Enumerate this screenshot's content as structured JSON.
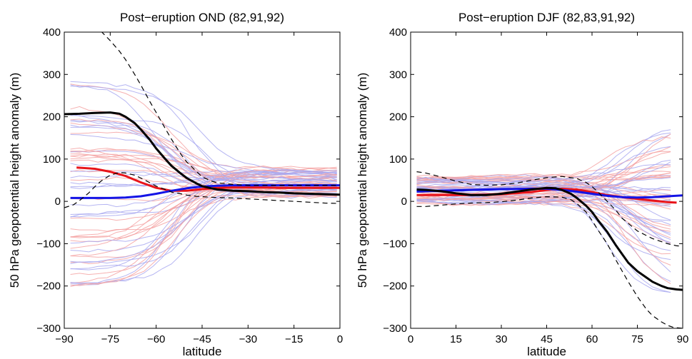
{
  "chart_data": [
    {
      "type": "line",
      "title": "Post−eruption OND (82,91,92)",
      "xlabel": "latitude",
      "ylabel": "50 hPa geopotential height anomaly (m)",
      "xlim": [
        -90,
        0
      ],
      "ylim": [
        -300,
        400
      ],
      "xticks": [
        -90,
        -75,
        -60,
        -45,
        -30,
        -15,
        0
      ],
      "xtick_labels": [
        "−90",
        "−75",
        "−60",
        "−45",
        "−30",
        "−15",
        "0"
      ],
      "yticks": [
        -300,
        -200,
        -100,
        0,
        100,
        200,
        300,
        400
      ],
      "ytick_labels": [
        "−300",
        "−200",
        "−100",
        "0",
        "100",
        "200",
        "300",
        "400"
      ],
      "grid": false,
      "colors": {
        "red_bold": "#e8141a",
        "blue_bold": "#1414e6",
        "black_bold": "#000000",
        "red_thin": "#f5a3a3",
        "blue_thin": "#a8a8f0"
      },
      "series": [
        {
          "role": "ensemble-mean-red",
          "style": "red-bold",
          "x": [
            -86,
            -80,
            -75,
            -70,
            -65,
            -60,
            -55,
            -50,
            -45,
            -40,
            -35,
            -30,
            -25,
            -20,
            -15,
            -10,
            -5,
            0
          ],
          "y": [
            80,
            77,
            70,
            60,
            45,
            32,
            25,
            25,
            29,
            32,
            33,
            33,
            33,
            32,
            32,
            32,
            32,
            32
          ]
        },
        {
          "role": "ensemble-mean-blue",
          "style": "blue-bold",
          "x": [
            -88,
            -80,
            -75,
            -70,
            -65,
            -60,
            -55,
            -50,
            -45,
            -40,
            -35,
            -30,
            -25,
            -20,
            -15,
            -10,
            -5,
            0
          ],
          "y": [
            8,
            8,
            8,
            9,
            12,
            18,
            25,
            31,
            35,
            37,
            38,
            38,
            38,
            38,
            38,
            38,
            38,
            38
          ]
        },
        {
          "role": "observed",
          "style": "black-bold",
          "x": [
            -90,
            -85,
            -80,
            -75,
            -72,
            -70,
            -67,
            -65,
            -62,
            -60,
            -57,
            -55,
            -52,
            -50,
            -47,
            -45,
            -42,
            -40,
            -35,
            -30,
            -25,
            -20,
            -15,
            -10,
            -5,
            0
          ],
          "y": [
            206,
            207,
            209,
            210,
            207,
            200,
            185,
            170,
            145,
            125,
            100,
            84,
            66,
            55,
            43,
            36,
            31,
            28,
            25,
            24,
            22,
            21,
            19,
            18,
            17,
            16
          ]
        },
        {
          "role": "observed-upper-bound",
          "style": "black-dashed",
          "x": [
            -78,
            -75,
            -72,
            -70,
            -67,
            -65,
            -62,
            -60,
            -57,
            -55,
            -52,
            -50,
            -47,
            -45,
            -42,
            -40,
            -35,
            -30,
            -25,
            -20,
            -15,
            -10,
            -5,
            0
          ],
          "y": [
            402,
            380,
            355,
            335,
            300,
            275,
            235,
            210,
            172,
            147,
            112,
            93,
            72,
            58,
            48,
            44,
            40,
            38,
            38,
            38,
            38,
            38,
            38,
            38
          ]
        },
        {
          "role": "observed-lower-bound",
          "style": "black-dashed",
          "x": [
            -90,
            -87,
            -85,
            -82,
            -80,
            -78,
            -75,
            -72,
            -70,
            -67,
            -65,
            -62,
            -60,
            -57,
            -55,
            -52,
            -50,
            -47,
            -45,
            -40,
            -35,
            -30,
            -25,
            -20,
            -15,
            -10,
            -5,
            0
          ],
          "y": [
            -15,
            -8,
            2,
            20,
            35,
            48,
            62,
            68,
            67,
            62,
            55,
            44,
            36,
            28,
            22,
            18,
            15,
            12,
            11,
            9,
            8,
            6,
            4,
            2,
            0,
            -2,
            -4,
            -5
          ]
        }
      ]
    },
    {
      "type": "line",
      "title": "Post−eruption DJF (82,83,91,92)",
      "xlabel": "latitude",
      "ylabel": "50 hPa geopotential height anomaly (m)",
      "xlim": [
        0,
        90
      ],
      "ylim": [
        -300,
        400
      ],
      "xticks": [
        0,
        15,
        30,
        45,
        60,
        75,
        90
      ],
      "xtick_labels": [
        "0",
        "15",
        "30",
        "45",
        "60",
        "75",
        "90"
      ],
      "yticks": [
        -300,
        -200,
        -100,
        0,
        100,
        200,
        300,
        400
      ],
      "ytick_labels": [
        "−300",
        "−200",
        "−100",
        "0",
        "100",
        "200",
        "300",
        "400"
      ],
      "grid": false,
      "colors": {
        "red_bold": "#e8141a",
        "blue_bold": "#1414e6",
        "black_bold": "#000000",
        "red_thin": "#f5a3a3",
        "blue_thin": "#a8a8f0"
      },
      "series": [
        {
          "role": "ensemble-mean-red",
          "style": "red-bold",
          "x": [
            2,
            10,
            20,
            30,
            40,
            45,
            50,
            55,
            60,
            65,
            70,
            75,
            80,
            85,
            88
          ],
          "y": [
            15,
            15,
            15,
            17,
            22,
            27,
            30,
            28,
            22,
            15,
            10,
            6,
            2,
            -2,
            -3
          ]
        },
        {
          "role": "ensemble-mean-blue",
          "style": "blue-bold",
          "x": [
            2,
            10,
            20,
            30,
            40,
            45,
            50,
            55,
            60,
            65,
            70,
            75,
            80,
            85,
            90
          ],
          "y": [
            23,
            25,
            27,
            29,
            30,
            30,
            27,
            23,
            18,
            13,
            10,
            9,
            10,
            12,
            14
          ]
        },
        {
          "role": "observed",
          "style": "black-bold",
          "x": [
            2,
            5,
            10,
            15,
            20,
            25,
            30,
            35,
            40,
            45,
            48,
            50,
            53,
            55,
            58,
            60,
            62,
            65,
            68,
            70,
            72,
            75,
            78,
            80,
            83,
            85,
            88,
            90
          ],
          "y": [
            28,
            27,
            24,
            19,
            15,
            15,
            18,
            23,
            28,
            32,
            31,
            27,
            18,
            8,
            -10,
            -25,
            -45,
            -72,
            -105,
            -125,
            -145,
            -165,
            -180,
            -190,
            -200,
            -205,
            -208,
            -209
          ]
        },
        {
          "role": "observed-upper-bound",
          "style": "black-dashed",
          "x": [
            2,
            5,
            10,
            15,
            20,
            25,
            30,
            35,
            40,
            45,
            50,
            55,
            58,
            60,
            62,
            65,
            68,
            70,
            75,
            80,
            85,
            88,
            90
          ],
          "y": [
            70,
            67,
            58,
            48,
            40,
            38,
            39,
            43,
            50,
            56,
            59,
            54,
            45,
            35,
            22,
            0,
            -22,
            -40,
            -70,
            -88,
            -100,
            -105,
            -106
          ]
        },
        {
          "role": "observed-lower-bound",
          "style": "black-dashed",
          "x": [
            2,
            5,
            10,
            15,
            20,
            25,
            30,
            35,
            40,
            45,
            50,
            53,
            55,
            58,
            60,
            62,
            65,
            68,
            70,
            72,
            75,
            78,
            80,
            83,
            85,
            87,
            90
          ],
          "y": [
            -12,
            -12,
            -9,
            -6,
            -4,
            -3,
            -1,
            3,
            8,
            11,
            10,
            4,
            -5,
            -25,
            -45,
            -68,
            -100,
            -140,
            -165,
            -190,
            -225,
            -255,
            -270,
            -285,
            -293,
            -298,
            -300
          ]
        }
      ]
    }
  ]
}
